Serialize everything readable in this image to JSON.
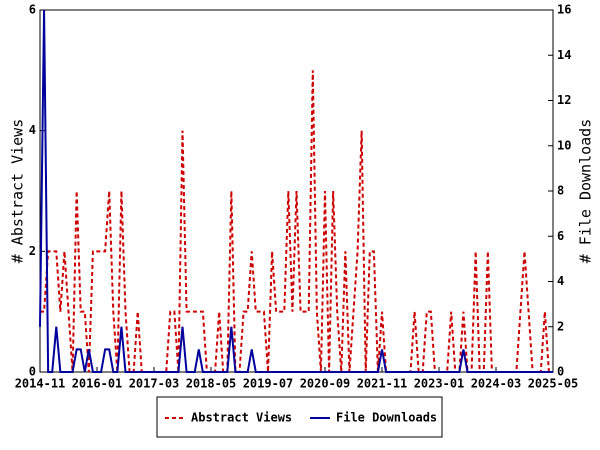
{
  "chart_data": {
    "type": "line",
    "ylabel": "# Abstract Views",
    "y2label": "# File Downloads",
    "x": [
      "2014-11",
      "2014-12",
      "2015-01",
      "2015-02",
      "2015-03",
      "2015-04",
      "2015-05",
      "2015-06",
      "2015-07",
      "2015-08",
      "2015-09",
      "2015-10",
      "2015-11",
      "2015-12",
      "2016-01",
      "2016-02",
      "2016-03",
      "2016-04",
      "2016-05",
      "2016-06",
      "2016-07",
      "2016-08",
      "2016-09",
      "2016-10",
      "2016-11",
      "2016-12",
      "2017-01",
      "2017-02",
      "2017-03",
      "2017-04",
      "2017-05",
      "2017-06",
      "2017-07",
      "2017-08",
      "2017-09",
      "2017-10",
      "2017-11",
      "2017-12",
      "2018-01",
      "2018-02",
      "2018-03",
      "2018-04",
      "2018-05",
      "2018-06",
      "2018-07",
      "2018-08",
      "2018-09",
      "2018-10",
      "2018-11",
      "2018-12",
      "2019-01",
      "2019-02",
      "2019-03",
      "2019-04",
      "2019-05",
      "2019-06",
      "2019-07",
      "2019-08",
      "2019-09",
      "2019-10",
      "2019-11",
      "2019-12",
      "2020-01",
      "2020-02",
      "2020-03",
      "2020-04",
      "2020-05",
      "2020-06",
      "2020-07",
      "2020-08",
      "2020-09",
      "2020-10",
      "2020-11",
      "2020-12",
      "2021-01",
      "2021-02",
      "2021-03",
      "2021-04",
      "2021-05",
      "2021-06",
      "2021-07",
      "2021-08",
      "2021-09",
      "2021-10",
      "2021-11",
      "2021-12",
      "2022-01",
      "2022-02",
      "2022-03",
      "2022-04",
      "2022-05",
      "2022-06",
      "2022-07",
      "2022-08",
      "2022-09",
      "2022-10",
      "2022-11",
      "2022-12",
      "2023-01",
      "2023-02",
      "2023-03",
      "2023-04",
      "2023-05",
      "2023-06",
      "2023-07",
      "2023-08",
      "2023-09",
      "2023-10",
      "2023-11",
      "2023-12",
      "2024-01",
      "2024-02",
      "2024-03",
      "2024-04",
      "2024-05",
      "2024-06",
      "2024-07",
      "2024-08",
      "2024-09",
      "2024-10",
      "2024-11",
      "2024-12",
      "2025-01",
      "2025-02",
      "2025-03",
      "2025-04",
      "2025-05"
    ],
    "xticks": [
      "2014-11",
      "2016-01",
      "2017-03",
      "2018-05",
      "2019-07",
      "2020-09",
      "2021-11",
      "2023-01",
      "2024-03",
      "2025-05"
    ],
    "ylim": [
      0,
      6
    ],
    "yticks": [
      0,
      2,
      4,
      6
    ],
    "y2lim": [
      0,
      16
    ],
    "y2ticks": [
      0,
      2,
      4,
      6,
      8,
      10,
      12,
      14,
      16
    ],
    "series": [
      {
        "name": "Abstract Views",
        "color": "#cc0000",
        "dash": true,
        "values": [
          1,
          1,
          2,
          2,
          2,
          1,
          2,
          1,
          0,
          3,
          1,
          1,
          0,
          2,
          2,
          2,
          2,
          3,
          1,
          0,
          3,
          1,
          0,
          0,
          1,
          0,
          0,
          0,
          0,
          0,
          0,
          0,
          1,
          1,
          0,
          4,
          1,
          1,
          1,
          1,
          1,
          0,
          0,
          0,
          1,
          0,
          0,
          3,
          0,
          0,
          1,
          1,
          2,
          1,
          1,
          1,
          0,
          2,
          1,
          1,
          1,
          3,
          1,
          3,
          1,
          1,
          1,
          5,
          1,
          0,
          3,
          0,
          3,
          1,
          0,
          2,
          0,
          1,
          2,
          4,
          0,
          2,
          2,
          0,
          1,
          0,
          0,
          0,
          0,
          0,
          0,
          0,
          1,
          0,
          0,
          1,
          1,
          0,
          0,
          0,
          0,
          1,
          0,
          0,
          1,
          0,
          0,
          2,
          0,
          0,
          2,
          0,
          0,
          0,
          0,
          0,
          0,
          0,
          1,
          2,
          1,
          0,
          0,
          0,
          1,
          0,
          0
        ]
      },
      {
        "name": "File Downloads",
        "color": "#00009c",
        "dash": false,
        "axis": "y2",
        "values": [
          2,
          16,
          0,
          0,
          2,
          0,
          0,
          0,
          0,
          1,
          1,
          0,
          1,
          0,
          0,
          0,
          1,
          1,
          0,
          0,
          2,
          0,
          0,
          0,
          0,
          0,
          0,
          0,
          0,
          0,
          0,
          0,
          0,
          0,
          0,
          2,
          0,
          0,
          0,
          1,
          0,
          0,
          0,
          0,
          0,
          0,
          0,
          2,
          0,
          0,
          0,
          0,
          1,
          0,
          0,
          0,
          0,
          0,
          0,
          0,
          0,
          0,
          0,
          0,
          0,
          0,
          0,
          0,
          0,
          0,
          0,
          0,
          0,
          0,
          0,
          0,
          0,
          0,
          0,
          0,
          0,
          0,
          0,
          0,
          1,
          0,
          0,
          0,
          0,
          0,
          0,
          0,
          0,
          0,
          0,
          0,
          0,
          0,
          0,
          0,
          0,
          0,
          0,
          0,
          1,
          0,
          0,
          0,
          0,
          0,
          0,
          0,
          0,
          0,
          0,
          0,
          0,
          0,
          0,
          0,
          0,
          0,
          0,
          0,
          0,
          0,
          0
        ]
      }
    ]
  }
}
